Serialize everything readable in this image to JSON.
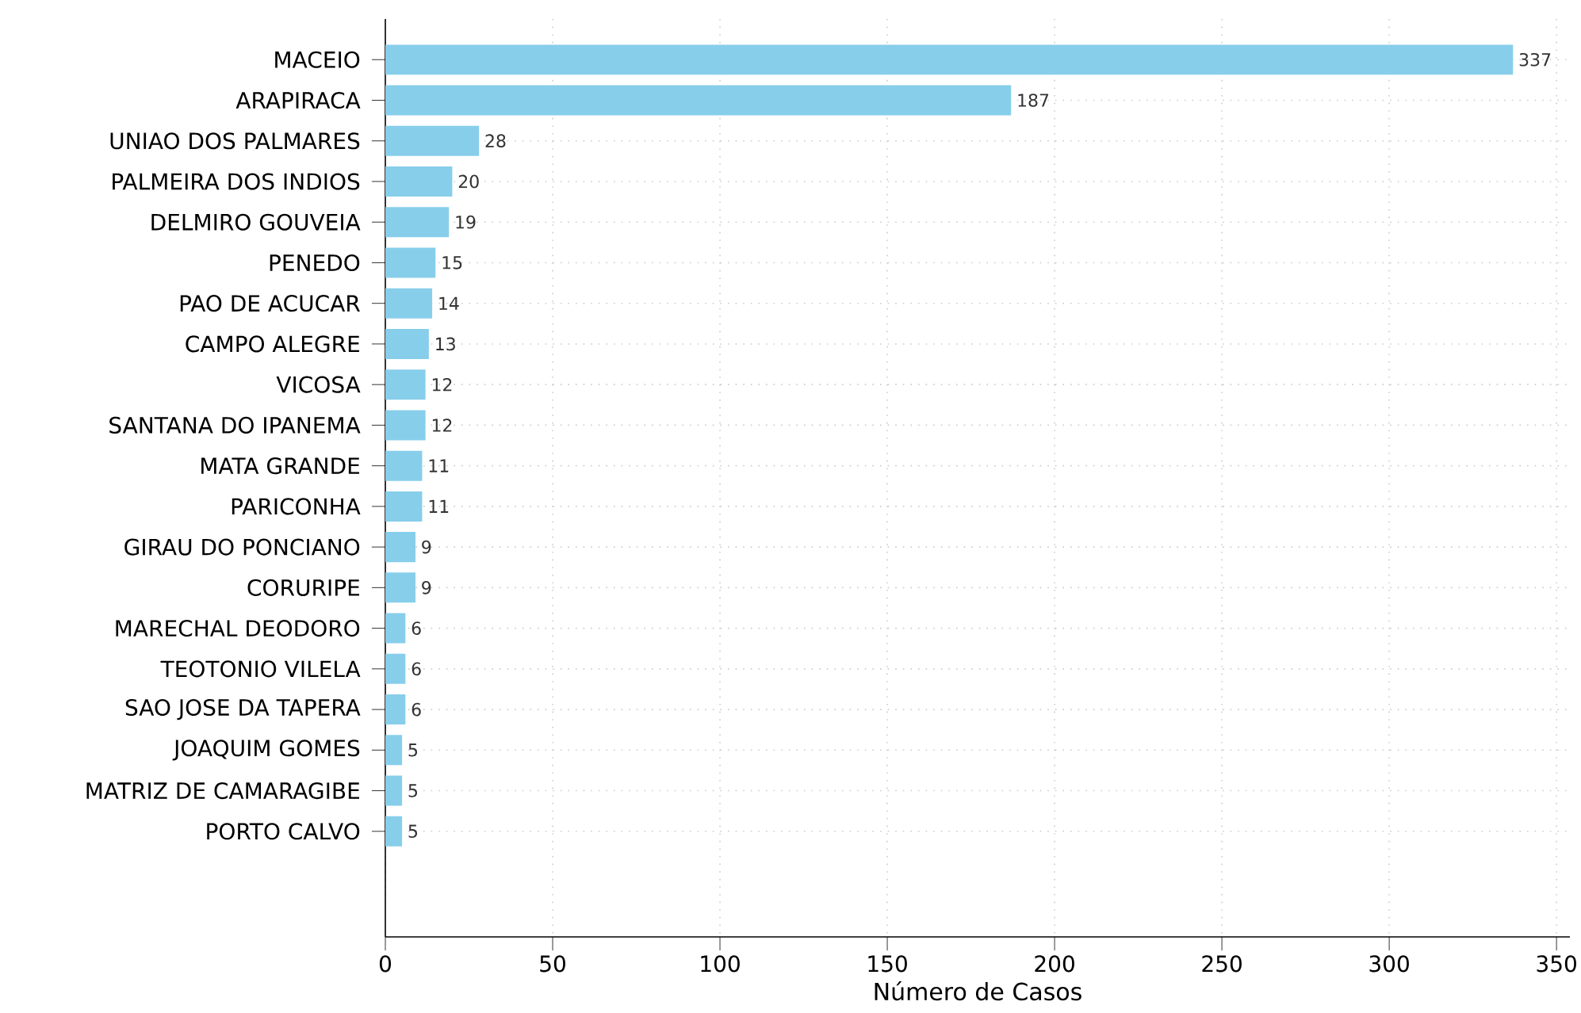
{
  "chart_data": {
    "type": "bar",
    "orientation": "horizontal",
    "xlabel": "Número de Casos",
    "categories": [
      "MACEIO",
      "ARAPIRACA",
      "UNIAO DOS PALMARES",
      "PALMEIRA DOS INDIOS",
      "DELMIRO GOUVEIA",
      "PENEDO",
      "PAO DE ACUCAR",
      "CAMPO ALEGRE",
      "VICOSA",
      "SANTANA DO IPANEMA",
      "MATA GRANDE",
      "PARICONHA",
      "GIRAU DO PONCIANO",
      "CORURIPE",
      "MARECHAL DEODORO",
      "TEOTONIO VILELA",
      "SAO JOSE DA TAPERA",
      "JOAQUIM GOMES",
      "MATRIZ DE CAMARAGIBE",
      "PORTO CALVO"
    ],
    "values": [
      337,
      187,
      28,
      20,
      19,
      15,
      14,
      13,
      12,
      12,
      11,
      11,
      9,
      9,
      6,
      6,
      6,
      5,
      5,
      5
    ],
    "color": "#87ceeb",
    "xlim": [
      0,
      354
    ],
    "xticks": [
      0,
      50,
      100,
      150,
      200,
      250,
      300,
      350
    ],
    "grid": true,
    "data_labels": true
  }
}
